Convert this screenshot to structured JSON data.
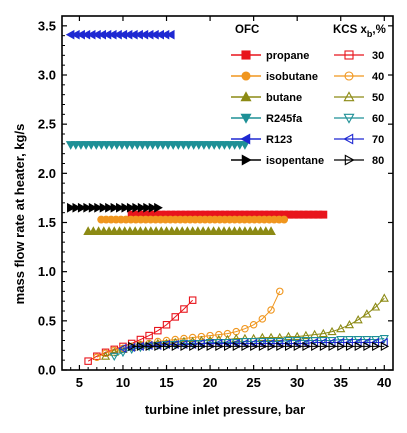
{
  "chart_data": {
    "type": "scatter",
    "xlabel": "turbine inlet pressure, bar",
    "ylabel": "mass flow rate at heater, kg/s",
    "xlim": [
      3,
      41
    ],
    "ylim": [
      0,
      3.6
    ],
    "xticks": [
      "5",
      "10",
      "15",
      "20",
      "25",
      "30",
      "35",
      "40"
    ],
    "yticks": [
      "0.0",
      "0.5",
      "1.0",
      "1.5",
      "2.0",
      "2.5",
      "3.0",
      "3.5"
    ],
    "legend_titles": {
      "ofc": "OFC",
      "kcs_prefix": "KCS x",
      "kcs_sub": "b",
      "kcs_suffix": ",%"
    },
    "ofc_series": [
      {
        "name": "propane",
        "marker": "square",
        "color": "#e8141c",
        "fill": true,
        "x_start": 11,
        "x_end": 33,
        "n": 40,
        "y": 1.58
      },
      {
        "name": "isobutane",
        "marker": "circle",
        "color": "#f0961e",
        "fill": true,
        "x_start": 7.5,
        "x_end": 28.5,
        "n": 38,
        "y": 1.53
      },
      {
        "name": "butane",
        "marker": "triangle-up",
        "color": "#8c8a14",
        "fill": true,
        "x_start": 6,
        "x_end": 27,
        "n": 36,
        "y": 1.41
      },
      {
        "name": "R245fa",
        "marker": "triangle-down",
        "color": "#1e9096",
        "fill": true,
        "x_start": 4,
        "x_end": 24,
        "n": 35,
        "y": 2.29
      },
      {
        "name": "R123",
        "marker": "triangle-left",
        "color": "#1e28d2",
        "fill": true,
        "x_start": 4,
        "x_end": 15.5,
        "n": 20,
        "y": 3.41
      },
      {
        "name": "isopentane",
        "marker": "triangle-right",
        "color": "#000000",
        "fill": true,
        "x_start": 4,
        "x_end": 14,
        "n": 17,
        "y": 1.65
      }
    ],
    "kcs_series": [
      {
        "name": "30",
        "marker": "square",
        "color": "#e8141c",
        "fill": false,
        "points": [
          [
            6,
            0.09
          ],
          [
            7,
            0.14
          ],
          [
            8,
            0.18
          ],
          [
            9,
            0.21
          ],
          [
            10,
            0.24
          ],
          [
            11,
            0.27
          ],
          [
            12,
            0.31
          ],
          [
            13,
            0.35
          ],
          [
            14,
            0.4
          ],
          [
            15,
            0.46
          ],
          [
            16,
            0.54
          ],
          [
            17,
            0.62
          ],
          [
            18,
            0.71
          ]
        ]
      },
      {
        "name": "40",
        "marker": "circle",
        "color": "#f0961e",
        "fill": false,
        "points": [
          [
            7,
            0.13
          ],
          [
            8,
            0.17
          ],
          [
            9,
            0.2
          ],
          [
            10,
            0.22
          ],
          [
            11,
            0.24
          ],
          [
            12,
            0.26
          ],
          [
            13,
            0.27
          ],
          [
            14,
            0.29
          ],
          [
            15,
            0.3
          ],
          [
            16,
            0.31
          ],
          [
            17,
            0.32
          ],
          [
            18,
            0.33
          ],
          [
            19,
            0.34
          ],
          [
            20,
            0.35
          ],
          [
            21,
            0.36
          ],
          [
            22,
            0.37
          ],
          [
            23,
            0.39
          ],
          [
            24,
            0.42
          ],
          [
            25,
            0.46
          ],
          [
            26,
            0.52
          ],
          [
            27,
            0.61
          ],
          [
            28,
            0.8
          ]
        ]
      },
      {
        "name": "50",
        "marker": "triangle-up",
        "color": "#8c8a14",
        "fill": false,
        "points": [
          [
            8,
            0.14
          ],
          [
            9,
            0.18
          ],
          [
            10,
            0.21
          ],
          [
            11,
            0.23
          ],
          [
            12,
            0.25
          ],
          [
            13,
            0.26
          ],
          [
            14,
            0.27
          ],
          [
            15,
            0.27
          ],
          [
            16,
            0.28
          ],
          [
            17,
            0.29
          ],
          [
            18,
            0.29
          ],
          [
            19,
            0.3
          ],
          [
            20,
            0.3
          ],
          [
            21,
            0.31
          ],
          [
            22,
            0.31
          ],
          [
            23,
            0.32
          ],
          [
            24,
            0.32
          ],
          [
            25,
            0.32
          ],
          [
            26,
            0.33
          ],
          [
            27,
            0.33
          ],
          [
            28,
            0.33
          ],
          [
            29,
            0.34
          ],
          [
            30,
            0.34
          ],
          [
            31,
            0.35
          ],
          [
            32,
            0.36
          ],
          [
            33,
            0.37
          ],
          [
            34,
            0.39
          ],
          [
            35,
            0.42
          ],
          [
            36,
            0.46
          ],
          [
            37,
            0.51
          ],
          [
            38,
            0.57
          ],
          [
            39,
            0.64
          ],
          [
            40,
            0.73
          ]
        ]
      },
      {
        "name": "60",
        "marker": "triangle-down",
        "color": "#1e9096",
        "fill": false,
        "points": [
          [
            9,
            0.14
          ],
          [
            10,
            0.18
          ],
          [
            11,
            0.21
          ],
          [
            12,
            0.23
          ],
          [
            13,
            0.24
          ],
          [
            14,
            0.25
          ],
          [
            15,
            0.26
          ],
          [
            16,
            0.26
          ],
          [
            17,
            0.27
          ],
          [
            18,
            0.27
          ],
          [
            19,
            0.27
          ],
          [
            20,
            0.28
          ],
          [
            21,
            0.28
          ],
          [
            22,
            0.28
          ],
          [
            23,
            0.28
          ],
          [
            24,
            0.29
          ],
          [
            25,
            0.29
          ],
          [
            26,
            0.29
          ],
          [
            27,
            0.29
          ],
          [
            28,
            0.29
          ],
          [
            29,
            0.3
          ],
          [
            30,
            0.3
          ],
          [
            31,
            0.3
          ],
          [
            32,
            0.3
          ],
          [
            33,
            0.3
          ],
          [
            34,
            0.3
          ],
          [
            35,
            0.31
          ],
          [
            36,
            0.31
          ],
          [
            37,
            0.31
          ],
          [
            38,
            0.31
          ],
          [
            39,
            0.31
          ],
          [
            40,
            0.32
          ]
        ]
      },
      {
        "name": "70",
        "marker": "triangle-left",
        "color": "#1e28d2",
        "fill": false,
        "points": [
          [
            10,
            0.22
          ],
          [
            11,
            0.23
          ],
          [
            12,
            0.24
          ],
          [
            13,
            0.25
          ],
          [
            14,
            0.25
          ],
          [
            15,
            0.26
          ],
          [
            16,
            0.26
          ],
          [
            17,
            0.26
          ],
          [
            18,
            0.26
          ],
          [
            19,
            0.27
          ],
          [
            20,
            0.27
          ],
          [
            21,
            0.27
          ],
          [
            22,
            0.27
          ],
          [
            23,
            0.27
          ],
          [
            24,
            0.27
          ],
          [
            25,
            0.27
          ],
          [
            26,
            0.27
          ],
          [
            27,
            0.27
          ],
          [
            28,
            0.27
          ],
          [
            29,
            0.27
          ],
          [
            30,
            0.27
          ],
          [
            31,
            0.27
          ],
          [
            32,
            0.28
          ],
          [
            33,
            0.28
          ],
          [
            34,
            0.28
          ],
          [
            35,
            0.28
          ],
          [
            36,
            0.28
          ],
          [
            37,
            0.28
          ],
          [
            38,
            0.28
          ],
          [
            39,
            0.28
          ],
          [
            40,
            0.28
          ]
        ]
      },
      {
        "name": "80",
        "marker": "triangle-right",
        "color": "#000000",
        "fill": false,
        "points": [
          [
            11,
            0.24
          ],
          [
            12,
            0.24
          ],
          [
            13,
            0.24
          ],
          [
            14,
            0.24
          ],
          [
            15,
            0.24
          ],
          [
            16,
            0.24
          ],
          [
            17,
            0.24
          ],
          [
            18,
            0.24
          ],
          [
            19,
            0.24
          ],
          [
            20,
            0.24
          ],
          [
            21,
            0.24
          ],
          [
            22,
            0.24
          ],
          [
            23,
            0.24
          ],
          [
            24,
            0.24
          ],
          [
            25,
            0.24
          ],
          [
            26,
            0.24
          ],
          [
            27,
            0.24
          ],
          [
            28,
            0.24
          ],
          [
            29,
            0.24
          ],
          [
            30,
            0.24
          ],
          [
            31,
            0.24
          ],
          [
            32,
            0.24
          ],
          [
            33,
            0.24
          ],
          [
            34,
            0.24
          ],
          [
            35,
            0.24
          ],
          [
            36,
            0.24
          ],
          [
            37,
            0.24
          ],
          [
            38,
            0.24
          ],
          [
            39,
            0.24
          ],
          [
            40,
            0.24
          ]
        ]
      }
    ]
  }
}
